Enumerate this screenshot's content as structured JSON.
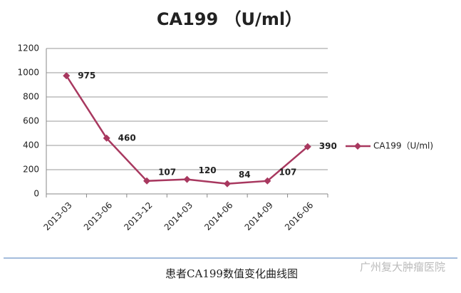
{
  "chart_data": {
    "type": "line",
    "title": "CA199 （U/ml）",
    "categories": [
      "2013-03",
      "2013-06",
      "2013-12",
      "2014-03",
      "2014-06",
      "2014-09",
      "2016-06"
    ],
    "series": [
      {
        "name": "CA199（U/ml)",
        "color": "#a8385f",
        "values": [
          975,
          460,
          107,
          120,
          84,
          107,
          390
        ]
      }
    ],
    "ylim": [
      0,
      1200
    ],
    "yticks": [
      0,
      200,
      400,
      600,
      800,
      1000,
      1200
    ],
    "grid": true,
    "legend": "right"
  },
  "caption": "患者CA199数值变化曲线图",
  "watermark": "广州复大肿瘤医院"
}
